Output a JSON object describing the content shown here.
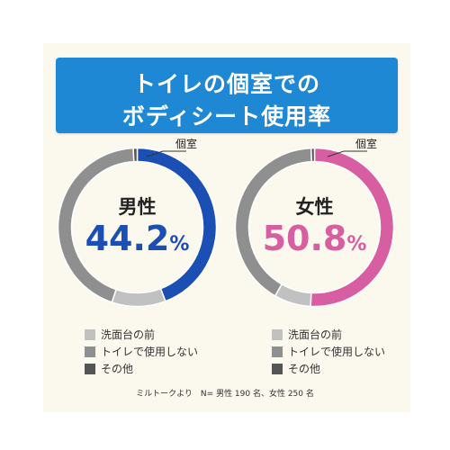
{
  "title": {
    "line1": "トイレの個室での",
    "line2": "ボディシート使用率"
  },
  "colors": {
    "male_accent": "#1b4fb4",
    "female_accent": "#d75ea1",
    "washbasin": "#c1c1c1",
    "not_in_toilet": "#8f8f8f",
    "other": "#555555",
    "banner": "#1e88d4"
  },
  "chart_data": [
    {
      "type": "pie",
      "donut": true,
      "center_label": "男性",
      "center_value": "44.2%",
      "callout": "個室",
      "slices": [
        {
          "name": "個室",
          "value": 44.2
        },
        {
          "name": "洗面台の前",
          "value": 11.0
        },
        {
          "name": "トイレで使用しない",
          "value": 44.0
        },
        {
          "name": "その他",
          "value": 0.8
        }
      ],
      "legend": [
        "洗面台の前",
        "トイレで使用しない",
        "その他"
      ]
    },
    {
      "type": "pie",
      "donut": true,
      "center_label": "女性",
      "center_value": "50.8%",
      "callout": "個室",
      "slices": [
        {
          "name": "個室",
          "value": 50.8
        },
        {
          "name": "洗面台の前",
          "value": 7.5
        },
        {
          "name": "トイレで使用しない",
          "value": 41.0
        },
        {
          "name": "その他",
          "value": 0.7
        }
      ],
      "legend": [
        "洗面台の前",
        "トイレで使用しない",
        "その他"
      ]
    }
  ],
  "footnote": "ミルトークより　N= 男性 190 名、女性 250 名"
}
